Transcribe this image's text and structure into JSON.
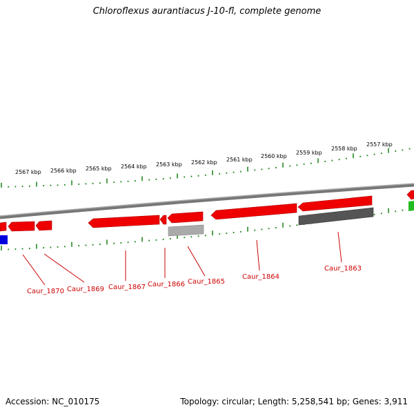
{
  "map": {
    "title": "Chloroflexus aurantiacus J-10-fl, complete genome",
    "accession_text": "Accession: NC_010175",
    "topology_text": "Topology: circular; Length: 5,258,541 bp; Genes: 3,911",
    "kbp_labels": [
      "2567 kbp",
      "2566 kbp",
      "2565 kbp",
      "2564 kbp",
      "2563 kbp",
      "2562 kbp",
      "2561 kbp",
      "2560 kbp",
      "2559 kbp",
      "2558 kbp",
      "2557 kbp"
    ],
    "gene_labels": [
      "Caur_1870",
      "Caur_1869",
      "Caur_1867",
      "Caur_1866",
      "Caur_1865",
      "Caur_1864",
      "Caur_1863"
    ],
    "colors": {
      "cds": "#ee0000",
      "cds_dark": "#aa0000",
      "rna_grey": "#999999",
      "rna_dark": "#555555",
      "blue_feature": "#0000dd",
      "green_feature": "#22bb22",
      "backbone": "#808080",
      "tick": "#228822",
      "label": "#cc0000"
    }
  }
}
